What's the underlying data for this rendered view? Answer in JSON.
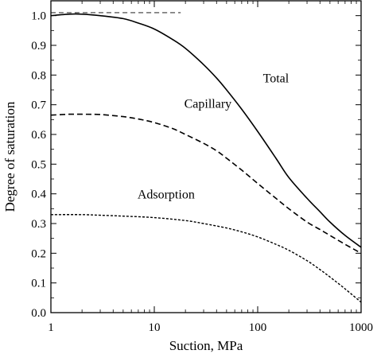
{
  "chart_data": {
    "type": "line",
    "xlabel": "Suction, MPa",
    "ylabel": "Degree of saturation",
    "x_scale": "log",
    "xlim": [
      1,
      1000
    ],
    "ylim": [
      0,
      1.05
    ],
    "grid": false,
    "x_ticks": [
      "1",
      "10",
      "100",
      "1000"
    ],
    "y_ticks": [
      "0.0",
      "0.1",
      "0.2",
      "0.3",
      "0.4",
      "0.5",
      "0.6",
      "0.7",
      "0.8",
      "0.9",
      "1.0"
    ],
    "series": [
      {
        "name": "Total",
        "style": "solid",
        "x": [
          1,
          1.5,
          2,
          3,
          5,
          7,
          10,
          15,
          20,
          30,
          40,
          50,
          70,
          100,
          150,
          200,
          300,
          400,
          500,
          700,
          1000
        ],
        "y": [
          1.0,
          1.005,
          1.005,
          1.0,
          0.99,
          0.975,
          0.955,
          0.92,
          0.89,
          0.835,
          0.79,
          0.75,
          0.685,
          0.61,
          0.52,
          0.455,
          0.385,
          0.34,
          0.305,
          0.26,
          0.22
        ]
      },
      {
        "name": "Capillary",
        "style": "dashed",
        "x": [
          1,
          1.5,
          2,
          3,
          5,
          7,
          10,
          15,
          20,
          30,
          40,
          50,
          70,
          100,
          150,
          200,
          300,
          400,
          500,
          700,
          1000
        ],
        "y": [
          0.665,
          0.668,
          0.668,
          0.667,
          0.66,
          0.652,
          0.64,
          0.62,
          0.6,
          0.57,
          0.545,
          0.52,
          0.48,
          0.435,
          0.385,
          0.35,
          0.305,
          0.28,
          0.26,
          0.23,
          0.2
        ]
      },
      {
        "name": "Adsorption",
        "style": "dotted",
        "x": [
          1,
          2,
          3,
          5,
          10,
          20,
          30,
          50,
          70,
          100,
          150,
          200,
          300,
          400,
          500,
          700,
          1000
        ],
        "y": [
          0.33,
          0.33,
          0.328,
          0.325,
          0.32,
          0.31,
          0.3,
          0.285,
          0.272,
          0.255,
          0.23,
          0.21,
          0.175,
          0.145,
          0.12,
          0.08,
          0.035
        ]
      },
      {
        "name": "",
        "style": "thin-dashed",
        "x": [
          1,
          18
        ],
        "y": [
          1.01,
          1.01
        ]
      }
    ],
    "annotations": [
      {
        "text": "Total",
        "x": 150,
        "y": 0.775
      },
      {
        "text": "Capillary",
        "x": 33,
        "y": 0.69
      },
      {
        "text": "Adsorption",
        "x": 13,
        "y": 0.385
      }
    ]
  }
}
